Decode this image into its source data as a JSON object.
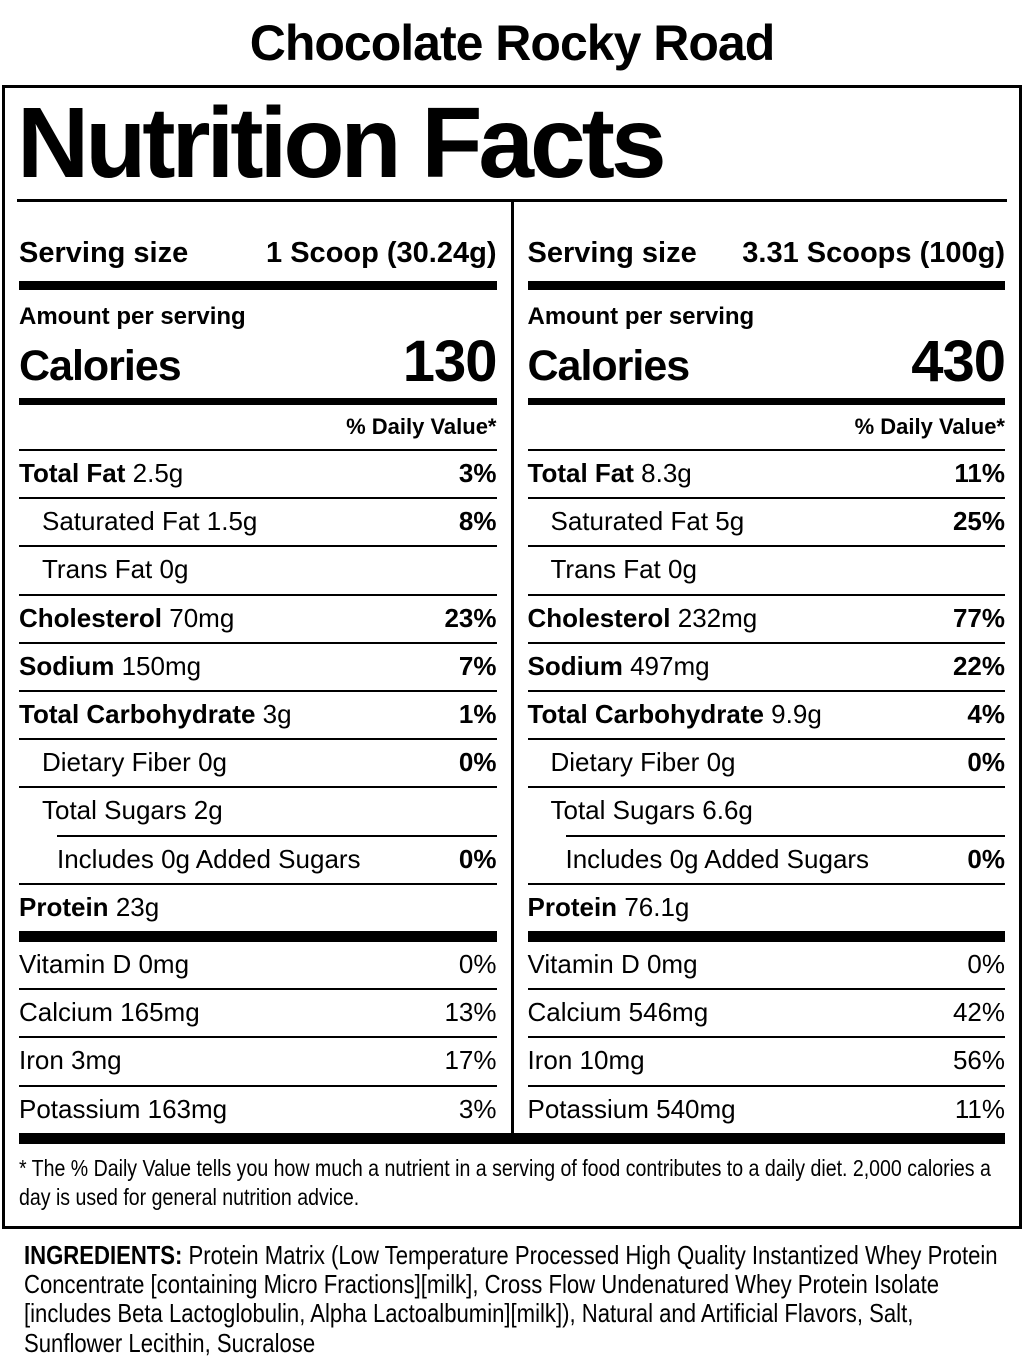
{
  "flavor_title": "Chocolate Rocky Road",
  "label": {
    "title": "Nutrition Facts",
    "serving_size_label": "Serving size",
    "amount_per_serving_label": "Amount per serving",
    "calories_label": "Calories",
    "daily_value_header": "% Daily Value*",
    "columns": [
      {
        "serving_size": "1 Scoop (30.24g)",
        "calories": "130",
        "nutrients": [
          {
            "name": "Total Fat",
            "amount": "2.5g",
            "dv": "3%"
          },
          {
            "name": "Saturated Fat",
            "amount": "1.5g",
            "dv": "8%"
          },
          {
            "name": "Trans Fat",
            "amount": "0g",
            "dv": ""
          },
          {
            "name": "Cholesterol",
            "amount": "70mg",
            "dv": "23%"
          },
          {
            "name": "Sodium",
            "amount": "150mg",
            "dv": "7%"
          },
          {
            "name": "Total Carbohydrate",
            "amount": "3g",
            "dv": "1%"
          },
          {
            "name": "Dietary Fiber",
            "amount": "0g",
            "dv": "0%"
          },
          {
            "name": "Total Sugars",
            "amount": "2g",
            "dv": ""
          },
          {
            "name": "Includes 0g Added Sugars",
            "amount": "",
            "dv": "0%"
          },
          {
            "name": "Protein",
            "amount": "23g",
            "dv": ""
          }
        ],
        "vitamins": [
          {
            "name": "Vitamin D",
            "amount": "0mg",
            "dv": "0%"
          },
          {
            "name": "Calcium",
            "amount": "165mg",
            "dv": "13%"
          },
          {
            "name": "Iron",
            "amount": "3mg",
            "dv": "17%"
          },
          {
            "name": "Potassium",
            "amount": "163mg",
            "dv": "3%"
          }
        ]
      },
      {
        "serving_size": "3.31 Scoops (100g)",
        "calories": "430",
        "nutrients": [
          {
            "name": "Total Fat",
            "amount": "8.3g",
            "dv": "11%"
          },
          {
            "name": "Saturated Fat",
            "amount": "5g",
            "dv": "25%"
          },
          {
            "name": "Trans Fat",
            "amount": "0g",
            "dv": ""
          },
          {
            "name": "Cholesterol",
            "amount": "232mg",
            "dv": "77%"
          },
          {
            "name": "Sodium",
            "amount": "497mg",
            "dv": "22%"
          },
          {
            "name": "Total Carbohydrate",
            "amount": "9.9g",
            "dv": "4%"
          },
          {
            "name": "Dietary Fiber",
            "amount": "0g",
            "dv": "0%"
          },
          {
            "name": "Total Sugars",
            "amount": "6.6g",
            "dv": ""
          },
          {
            "name": "Includes 0g Added Sugars",
            "amount": "",
            "dv": "0%"
          },
          {
            "name": "Protein",
            "amount": "76.1g",
            "dv": ""
          }
        ],
        "vitamins": [
          {
            "name": "Vitamin D",
            "amount": "0mg",
            "dv": "0%"
          },
          {
            "name": "Calcium",
            "amount": "546mg",
            "dv": "42%"
          },
          {
            "name": "Iron",
            "amount": "10mg",
            "dv": "56%"
          },
          {
            "name": "Potassium",
            "amount": "540mg",
            "dv": "11%"
          }
        ]
      }
    ],
    "footnote": "* The % Daily Value tells you how much a nutrient in a serving of food contributes to a daily diet. 2,000 calories a day is used for general nutrition advice.",
    "colors": {
      "ink": "#000000",
      "background": "#ffffff"
    }
  },
  "ingredients": {
    "label": "INGREDIENTS:",
    "text": "Protein Matrix (Low Temperature Processed High Quality Instantized Whey Protein Concentrate [containing Micro Fractions][milk], Cross Flow Undenatured Whey Protein Isolate [includes Beta Lactoglobulin, Alpha Lactoalbumin][milk]), Natural and Artificial Flavors, Salt, Sunflower Lecithin, Sucralose"
  }
}
